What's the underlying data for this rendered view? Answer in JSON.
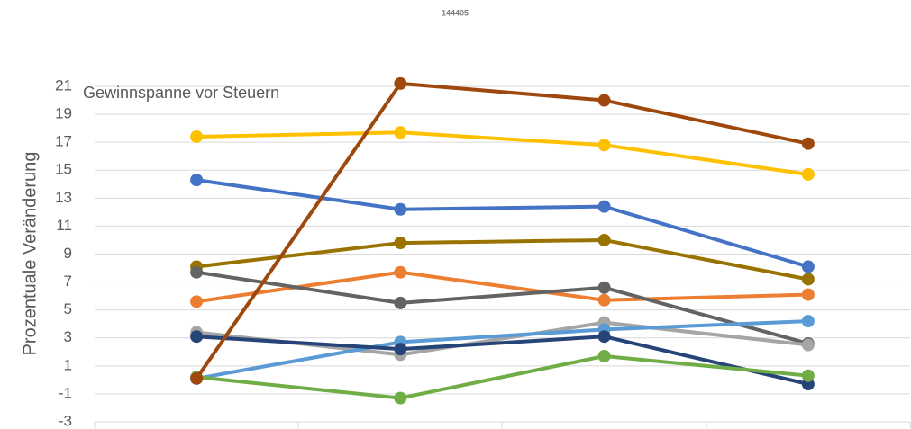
{
  "chart_data": {
    "type": "line",
    "title": "144405",
    "annotation": "Gewinnspanne vor Steuern",
    "y_label": "Prozentuale Veränderung",
    "categories": [
      null,
      null,
      null,
      null
    ],
    "series": [
      {
        "color": "#4472c4",
        "values": [
          14.3,
          12.2,
          12.4,
          8.1
        ]
      },
      {
        "color": "#ffc000",
        "values": [
          17.4,
          17.7,
          16.8,
          14.7
        ]
      },
      {
        "color": "#997300",
        "values": [
          8.1,
          9.8,
          10,
          7.2
        ]
      },
      {
        "color": "#ed7d31",
        "values": [
          5.6,
          7.7,
          5.7,
          6.1
        ]
      },
      {
        "color": "#636363",
        "values": [
          7.7,
          5.5,
          6.6,
          2.6
        ]
      },
      {
        "color": "#a5a5a5",
        "values": [
          3.4,
          1.8,
          4.1,
          2.5
        ]
      },
      {
        "color": "#5b9bd5",
        "values": [
          0.1,
          2.7,
          3.6,
          4.2
        ]
      },
      {
        "color": "#264478",
        "values": [
          3.1,
          2.2,
          3.1,
          -0.3
        ]
      },
      {
        "color": "#70ad47",
        "values": [
          0.2,
          -1.3,
          1.7,
          0.3
        ]
      },
      {
        "color": "#9e480e",
        "values": [
          0.1,
          21.2,
          20,
          16.9
        ]
      }
    ],
    "ylim": [
      -3,
      21
    ],
    "yticks": [
      -3,
      -1,
      1,
      3,
      5,
      7,
      9,
      11,
      13,
      15,
      17,
      19,
      21
    ],
    "grid": true
  }
}
